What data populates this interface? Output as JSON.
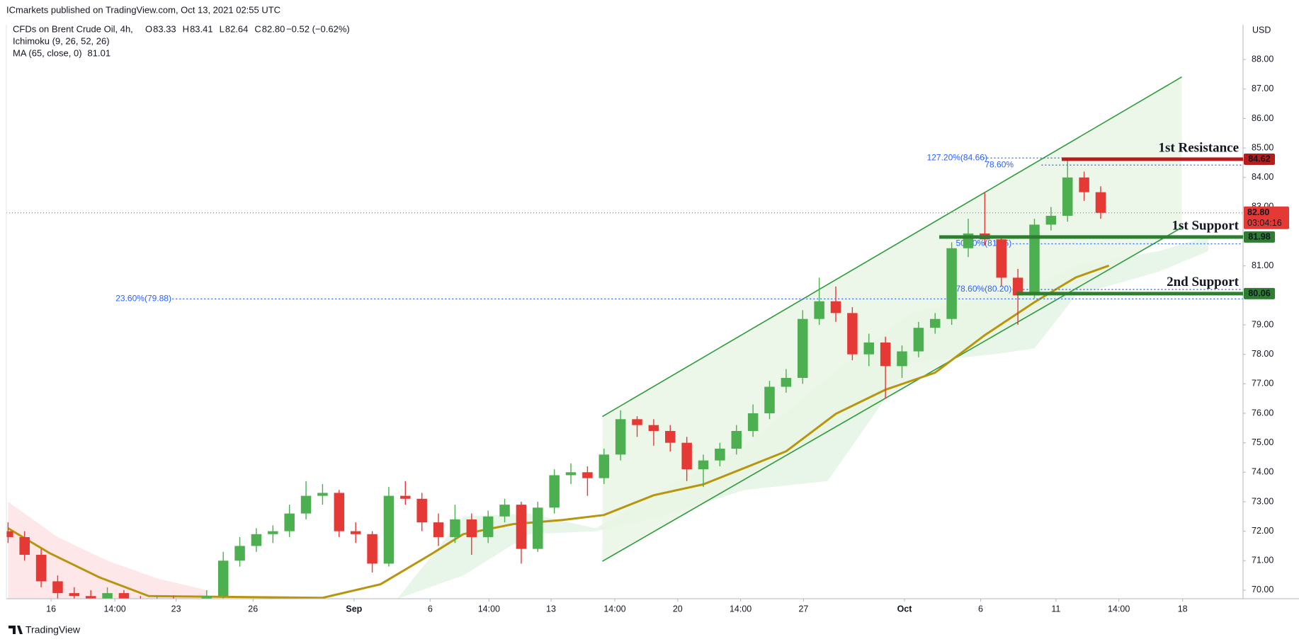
{
  "header": {
    "publisher": "ICmarkets published on TradingView.com, Oct 13, 2021 02:55 UTC",
    "symbol": "CFDs on Brent Crude Oil, 4h,",
    "ohlc": [
      {
        "label": "O",
        "value": 83.33
      },
      {
        "label": "H",
        "value": 83.41
      },
      {
        "label": "L",
        "value": 82.64
      },
      {
        "label": "C",
        "value": 82.8
      }
    ],
    "change": "−0.52 (−0.62%)",
    "indicator_ichimoku": "Ichimoku (9, 26, 52, 26)",
    "indicator_ma": "MA (65, close, 0)",
    "ma_value": 81.01,
    "currency": "USD",
    "countdown": "03:04:16",
    "footer": "TradingView"
  },
  "chart_data": {
    "type": "candlestick",
    "xlim": [
      -0.4,
      298.4
    ],
    "ylim": [
      69.71,
      89.18
    ],
    "grid": false,
    "up_color": "#4caf50",
    "down_color": "#e53935",
    "xticks": [
      {
        "value": 10.4,
        "label": "16"
      },
      {
        "value": 25.8,
        "label": "14:00"
      },
      {
        "value": 40.6,
        "label": "23"
      },
      {
        "value": 59.2,
        "label": "26"
      },
      {
        "value": 83.6,
        "label": "Sep"
      },
      {
        "value": 102,
        "label": "6"
      },
      {
        "value": 116.2,
        "label": "14:00"
      },
      {
        "value": 131.2,
        "label": "13"
      },
      {
        "value": 146.6,
        "label": "14:00"
      },
      {
        "value": 161.8,
        "label": "20"
      },
      {
        "value": 177,
        "label": "14:00"
      },
      {
        "value": 192.2,
        "label": "27"
      },
      {
        "value": 216.6,
        "label": "Oct"
      },
      {
        "value": 235,
        "label": "6"
      },
      {
        "value": 253.2,
        "label": "11"
      },
      {
        "value": 268.4,
        "label": "14:00"
      },
      {
        "value": 283.8,
        "label": "18"
      }
    ],
    "yticks": [
      {
        "value": 70,
        "label": "70.00"
      },
      {
        "value": 71,
        "label": "71.00"
      },
      {
        "value": 72,
        "label": "72.00"
      },
      {
        "value": 73,
        "label": "73.00"
      },
      {
        "value": 74,
        "label": "74.00"
      },
      {
        "value": 75,
        "label": "75.00"
      },
      {
        "value": 76,
        "label": "76.00"
      },
      {
        "value": 77,
        "label": "77.00"
      },
      {
        "value": 78,
        "label": "78.00"
      },
      {
        "value": 79,
        "label": "79.00"
      },
      {
        "value": 80,
        "label": "80.00"
      },
      {
        "value": 81,
        "label": "81.00"
      },
      {
        "value": 82,
        "label": "82.00"
      },
      {
        "value": 83,
        "label": "83.00"
      },
      {
        "value": 84,
        "label": "84.00"
      },
      {
        "value": 85,
        "label": "85.00"
      },
      {
        "value": 86,
        "label": "86.00"
      },
      {
        "value": 87,
        "label": "87.00"
      },
      {
        "value": 88,
        "label": "88.00"
      }
    ],
    "candles": {
      "x": [
        0,
        4,
        8,
        12,
        16,
        20,
        24,
        28,
        32,
        36,
        40,
        44,
        48,
        52,
        56,
        60,
        64,
        68,
        72,
        76,
        80,
        84,
        88,
        92,
        96,
        100,
        104,
        108,
        112,
        116,
        120,
        124,
        128,
        132,
        136,
        140,
        144,
        148,
        152,
        156,
        160,
        164,
        168,
        172,
        176,
        180,
        184,
        188,
        192,
        196,
        200,
        204,
        208,
        212,
        216,
        220,
        224,
        228,
        232,
        236,
        240,
        244,
        248,
        252,
        256,
        260,
        264
      ],
      "open": [
        72.0,
        71.8,
        71.2,
        70.3,
        69.9,
        69.8,
        69.7,
        69.9,
        69.6,
        69.5,
        69.6,
        69.5,
        69.4,
        69.8,
        71.0,
        71.5,
        71.9,
        72.0,
        72.6,
        73.2,
        73.3,
        72.0,
        71.9,
        70.9,
        73.2,
        73.1,
        72.3,
        71.8,
        72.4,
        71.8,
        72.5,
        72.9,
        71.4,
        72.8,
        73.9,
        74.0,
        73.8,
        74.6,
        75.8,
        75.6,
        75.4,
        75.0,
        74.1,
        74.4,
        74.8,
        75.4,
        76.0,
        76.9,
        77.2,
        79.2,
        79.8,
        79.4,
        78.0,
        78.4,
        77.6,
        78.1,
        78.9,
        79.2,
        81.6,
        82.1,
        81.9,
        80.6,
        80.0,
        82.4,
        82.7,
        84.0,
        83.5
      ],
      "high": [
        72.3,
        72.0,
        71.4,
        70.5,
        70.1,
        70.0,
        70.1,
        70.0,
        69.8,
        69.8,
        69.8,
        69.7,
        70.0,
        71.3,
        71.8,
        72.1,
        72.2,
        72.9,
        73.7,
        73.6,
        73.4,
        72.3,
        72.0,
        73.5,
        73.7,
        73.3,
        72.6,
        72.9,
        72.6,
        72.7,
        73.1,
        73.0,
        73.0,
        74.1,
        74.3,
        74.2,
        74.8,
        76.1,
        75.9,
        75.8,
        75.6,
        75.2,
        74.6,
        75.0,
        75.6,
        76.3,
        77.1,
        77.5,
        79.5,
        80.6,
        80.3,
        79.6,
        78.7,
        78.6,
        78.3,
        79.1,
        79.4,
        81.8,
        82.6,
        83.5,
        82.0,
        80.9,
        82.6,
        83.0,
        84.6,
        84.2,
        83.7
      ],
      "low": [
        71.6,
        71.0,
        70.1,
        69.7,
        69.5,
        69.4,
        69.5,
        69.4,
        69.3,
        69.3,
        69.3,
        69.2,
        69.2,
        69.7,
        70.8,
        71.3,
        71.6,
        71.8,
        72.4,
        72.9,
        71.8,
        71.6,
        70.6,
        70.8,
        72.9,
        72.0,
        71.5,
        71.6,
        71.2,
        71.6,
        72.3,
        70.9,
        71.3,
        72.6,
        73.6,
        73.2,
        73.6,
        74.4,
        75.2,
        74.9,
        74.7,
        73.7,
        73.5,
        74.2,
        74.6,
        75.2,
        75.8,
        76.7,
        77.0,
        79.0,
        79.1,
        77.8,
        77.6,
        76.5,
        77.2,
        77.9,
        78.7,
        79.0,
        81.3,
        81.7,
        80.3,
        79.0,
        79.9,
        82.2,
        82.5,
        83.2,
        82.6
      ],
      "close": [
        71.8,
        71.2,
        70.3,
        69.9,
        69.8,
        69.7,
        69.9,
        69.6,
        69.5,
        69.6,
        69.5,
        69.4,
        69.8,
        71.0,
        71.5,
        71.9,
        72.0,
        72.6,
        73.2,
        73.3,
        72.0,
        71.9,
        70.9,
        73.2,
        73.1,
        72.3,
        71.8,
        72.4,
        71.8,
        72.5,
        72.9,
        71.4,
        72.8,
        73.9,
        74.0,
        73.8,
        74.6,
        75.8,
        75.6,
        75.4,
        75.0,
        74.1,
        74.4,
        74.8,
        75.4,
        76.0,
        76.9,
        77.2,
        79.2,
        79.8,
        79.4,
        78.0,
        78.4,
        77.6,
        78.1,
        78.9,
        79.2,
        81.6,
        82.1,
        81.9,
        80.6,
        80.0,
        82.4,
        82.7,
        84.0,
        83.5,
        82.8
      ]
    },
    "ma": {
      "name": "MA (65, close, 0)",
      "color": "#b8960c",
      "x": [
        0,
        10,
        22,
        34,
        76,
        90,
        102,
        110,
        122,
        134,
        144,
        156,
        168,
        188,
        200,
        212,
        224,
        236,
        248,
        258,
        266
      ],
      "values": [
        72.1,
        71.26,
        70.44,
        69.8,
        69.74,
        70.2,
        71.2,
        71.9,
        72.24,
        72.38,
        72.55,
        73.22,
        73.59,
        74.71,
        75.98,
        76.8,
        77.38,
        78.65,
        79.77,
        80.61,
        81.01
      ]
    },
    "clouds": [
      {
        "color": "#e8f5e9",
        "x": [
          94,
          110,
          126,
          142,
          158,
          178,
          198,
          218,
          238,
          248,
          258,
          278,
          290
        ],
        "upper": [
          69.7,
          72.5,
          72.6,
          72.1,
          73.4,
          74.9,
          77.2,
          79.4,
          80.0,
          80.3,
          81.0,
          81.5,
          82.0
        ],
        "lower": [
          69.7,
          70.5,
          71.9,
          72.0,
          72.5,
          73.4,
          73.7,
          77.7,
          78.0,
          78.2,
          80.0,
          80.8,
          81.5
        ]
      },
      {
        "color": "#fde7e9",
        "x": [
          0,
          12,
          24,
          36,
          48
        ],
        "upper": [
          73.0,
          71.8,
          71.0,
          70.4,
          70.0
        ],
        "lower": [
          69.7,
          69.7,
          69.7,
          69.7,
          69.7
        ]
      }
    ],
    "channel": {
      "color": "#2e9b3a",
      "fill": "#e8f5e3",
      "upper": {
        "x": [
          143.6,
          283.6
        ],
        "values": [
          75.89,
          87.41
        ]
      },
      "lower": {
        "x": [
          143.6,
          283.6
        ],
        "values": [
          70.98,
          82.3
        ]
      }
    },
    "levels": [
      {
        "name": "1st Resistance",
        "value": 84.62,
        "x_start": 254.6,
        "color": "#b71c1c"
      },
      {
        "name": "1st Support",
        "value": 81.98,
        "x_start": 225,
        "color": "#2e7d32"
      },
      {
        "name": "2nd Support",
        "value": 80.06,
        "x_start": 243.6,
        "color": "#2e7d32"
      }
    ],
    "last_price": {
      "value": 82.8,
      "color": "#e53935"
    },
    "fib": [
      {
        "value": 84.66,
        "label": "127.20%(84.66)",
        "x": 222
      },
      {
        "value": 84.42,
        "label": "78.60%",
        "x": 236
      },
      {
        "value": 81.75,
        "label": "50.00%(81.75)",
        "x": 229
      },
      {
        "value": 80.2,
        "label": "78.60%(80.20)",
        "x": 229
      },
      {
        "value": 79.88,
        "label": "23.60%(79.88)",
        "x": 26
      }
    ]
  }
}
